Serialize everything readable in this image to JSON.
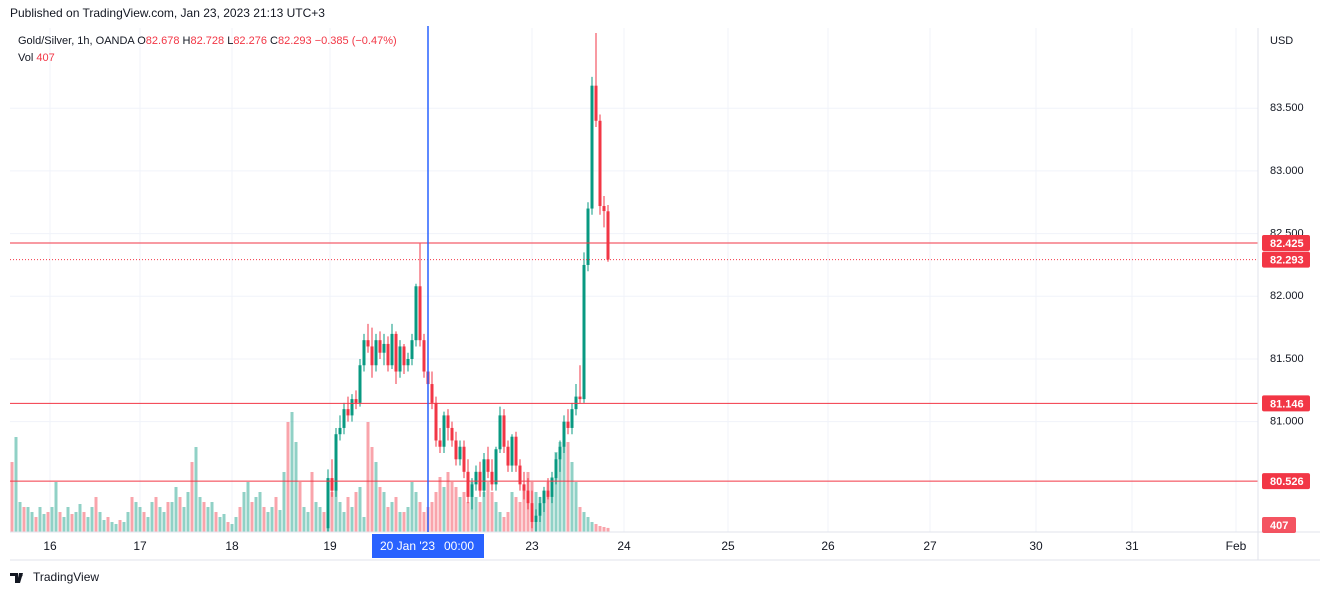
{
  "header": "Published on TradingView.com, Jan 23, 2023 21:13 UTC+3",
  "footer": "TradingView",
  "chart_data": {
    "type": "candlestick",
    "symbol": "Gold/Silver, 1h, OANDA",
    "legend": {
      "o_label": "O",
      "open": 82.678,
      "h_label": "H",
      "high": 82.728,
      "l_label": "L",
      "low": 82.276,
      "c_label": "C",
      "close": 82.293,
      "change": "−0.385 (−0.47%)",
      "vol_label": "Vol",
      "volume": 407
    },
    "currency": "USD",
    "up_color": "#089981",
    "down_color": "#f23645",
    "x": [
      79,
      80,
      81,
      82,
      83,
      84,
      85,
      86,
      87,
      88,
      89,
      90,
      91,
      92,
      93,
      94,
      95,
      96,
      97,
      98,
      99,
      100,
      101,
      102,
      103,
      104,
      105,
      106,
      107,
      108,
      109,
      110,
      111,
      112,
      113,
      114,
      115,
      116,
      117,
      118,
      119,
      120,
      121,
      122,
      123,
      124,
      125,
      126,
      127,
      128,
      129,
      130,
      131,
      132,
      133,
      134,
      135,
      136,
      137,
      138,
      139,
      140,
      141,
      142,
      143,
      144,
      145,
      146,
      147,
      148,
      149
    ],
    "open": [
      80.15,
      80.55,
      80.45,
      80.9,
      80.95,
      81.1,
      81.05,
      81.18,
      81.15,
      81.45,
      81.65,
      81.6,
      81.45,
      81.65,
      81.55,
      81.62,
      81.45,
      81.7,
      81.4,
      81.6,
      81.45,
      81.5,
      81.65,
      82.08,
      81.65,
      81.4,
      81.3,
      81.15,
      80.85,
      80.8,
      81.05,
      80.95,
      80.85,
      80.7,
      80.8,
      80.6,
      80.4,
      80.5,
      80.6,
      80.45,
      80.7,
      80.6,
      80.5,
      80.78,
      81.05,
      80.8,
      80.65,
      80.88,
      80.65,
      80.5,
      80.45,
      80.35,
      80.2,
      80.25,
      80.35,
      80.45,
      80.4,
      80.55,
      80.7,
      80.8,
      81.0,
      80.95,
      81.1,
      81.2,
      81.18,
      82.25,
      82.7,
      83.68,
      83.4,
      82.72,
      82.678
    ],
    "high": [
      80.62,
      80.7,
      80.95,
      81.05,
      81.15,
      81.2,
      81.22,
      81.25,
      81.5,
      81.7,
      81.78,
      81.75,
      81.7,
      81.72,
      81.7,
      81.68,
      81.78,
      81.72,
      81.65,
      81.62,
      81.55,
      81.7,
      82.1,
      82.42,
      81.7,
      81.5,
      81.4,
      81.2,
      80.95,
      81.08,
      81.1,
      81.0,
      80.92,
      80.85,
      80.85,
      80.7,
      80.55,
      80.65,
      80.68,
      80.75,
      80.8,
      80.7,
      80.8,
      81.12,
      81.1,
      80.85,
      80.9,
      80.92,
      80.7,
      80.6,
      80.55,
      80.45,
      80.3,
      80.4,
      80.48,
      80.55,
      80.6,
      80.75,
      80.85,
      81.05,
      81.1,
      81.15,
      81.3,
      81.45,
      82.35,
      82.75,
      83.75,
      84.1,
      83.45,
      82.8,
      82.728
    ],
    "low": [
      80.1,
      80.4,
      80.4,
      80.85,
      80.9,
      81.0,
      81.0,
      81.1,
      81.12,
      81.4,
      81.55,
      81.35,
      81.4,
      81.5,
      81.45,
      81.4,
      81.42,
      81.3,
      81.35,
      81.38,
      81.4,
      81.45,
      81.6,
      81.6,
      81.35,
      81.2,
      81.1,
      80.8,
      80.75,
      80.75,
      80.85,
      80.8,
      80.65,
      80.65,
      80.55,
      80.35,
      80.3,
      80.45,
      80.4,
      80.4,
      80.55,
      80.45,
      80.45,
      80.75,
      80.75,
      80.6,
      80.6,
      80.6,
      80.45,
      80.38,
      80.3,
      80.15,
      80.12,
      80.2,
      80.28,
      80.38,
      80.35,
      80.5,
      80.6,
      80.75,
      80.9,
      80.9,
      81.05,
      81.15,
      81.15,
      82.2,
      82.65,
      83.35,
      82.65,
      82.55,
      82.276
    ],
    "close": [
      80.55,
      80.45,
      80.9,
      80.95,
      81.1,
      81.05,
      81.18,
      81.15,
      81.45,
      81.65,
      81.6,
      81.45,
      81.65,
      81.55,
      81.62,
      81.45,
      81.7,
      81.4,
      81.6,
      81.45,
      81.5,
      81.65,
      82.08,
      81.65,
      81.4,
      81.3,
      81.15,
      80.85,
      80.8,
      81.05,
      80.95,
      80.85,
      80.7,
      80.8,
      80.6,
      80.4,
      80.5,
      80.6,
      80.45,
      80.7,
      80.6,
      80.5,
      80.78,
      81.05,
      80.8,
      80.65,
      80.88,
      80.65,
      80.5,
      80.45,
      80.35,
      80.2,
      80.25,
      80.35,
      80.45,
      80.4,
      80.55,
      80.7,
      80.8,
      81.0,
      80.95,
      81.1,
      81.2,
      81.18,
      82.25,
      82.7,
      83.68,
      83.4,
      82.72,
      82.68,
      82.293
    ],
    "volume": {
      "x": [
        0,
        1,
        2,
        3,
        4,
        5,
        6,
        7,
        8,
        9,
        10,
        11,
        12,
        13,
        14,
        15,
        16,
        17,
        18,
        19,
        20,
        21,
        22,
        23,
        24,
        25,
        26,
        27,
        28,
        29,
        30,
        31,
        32,
        33,
        34,
        35,
        36,
        37,
        38,
        39,
        40,
        41,
        42,
        43,
        44,
        45,
        46,
        47,
        48,
        49,
        50,
        51,
        52,
        53,
        54,
        55,
        56,
        57,
        58,
        59,
        60,
        61,
        62,
        63,
        64,
        65,
        66,
        67,
        68,
        69,
        70,
        71,
        72,
        73,
        74,
        75,
        76,
        77,
        78,
        79,
        80,
        81,
        82,
        83,
        84,
        85,
        86,
        87,
        88,
        89,
        90,
        91,
        92,
        93,
        94,
        95,
        96,
        97,
        98,
        99,
        100,
        101,
        102,
        103,
        104,
        105,
        106,
        107,
        108,
        109,
        110,
        111,
        112,
        113,
        114,
        115,
        116,
        117,
        118,
        119,
        120,
        121,
        122,
        123,
        124,
        125,
        126,
        127,
        128,
        129,
        130,
        131,
        132,
        133,
        134,
        135,
        136,
        137,
        138,
        139,
        140,
        141,
        142,
        143,
        144,
        145,
        146,
        147,
        148,
        149
      ],
      "values": [
        7000,
        9500,
        3000,
        2500,
        2500,
        2000,
        1500,
        2500,
        1800,
        2000,
        2500,
        5000,
        2000,
        1500,
        2500,
        1800,
        2000,
        2800,
        2000,
        1500,
        2500,
        3500,
        2000,
        1200,
        1500,
        1000,
        800,
        1200,
        1000,
        2000,
        3500,
        3000,
        2500,
        2000,
        1500,
        3000,
        3500,
        2500,
        2000,
        3000,
        3000,
        4500,
        3500,
        2500,
        4000,
        7000,
        8500,
        3500,
        3000,
        2500,
        3000,
        2000,
        1500,
        1800,
        1000,
        800,
        1500,
        2500,
        4000,
        5000,
        3000,
        3500,
        4000,
        2500,
        2000,
        2500,
        3500,
        2200,
        6000,
        11000,
        12000,
        9000,
        5000,
        2500,
        2000,
        6000,
        3000,
        2500,
        2000,
        4500,
        4000,
        5000,
        3000,
        2000,
        3500,
        2500,
        4000,
        4500,
        1500,
        11000,
        8500,
        7000,
        4500,
        4000,
        2500,
        3000,
        3500,
        2000,
        2000,
        2500,
        5000,
        4000,
        3000,
        2000,
        2500,
        3000,
        4000,
        5500,
        4500,
        6000,
        5000,
        4500,
        3500,
        4000,
        3000,
        5000,
        3500,
        3000,
        4000,
        5000,
        4000,
        3000,
        2000,
        1500,
        2000,
        4000,
        3500,
        3000,
        4500,
        6000,
        5000,
        4000,
        3500,
        3000,
        5000,
        5500,
        8000,
        9000,
        11000,
        9000,
        7000,
        5000,
        2500,
        2000,
        1500,
        1000,
        800,
        600,
        500,
        407
      ],
      "ylim": [
        0,
        50400
      ]
    },
    "xlim": [
      -0.5,
      311.5
    ],
    "ylim": [
      80.12,
      84.14
    ],
    "yticks": [
      {
        "value": 81,
        "label": "81.000"
      },
      {
        "value": 81.5,
        "label": "81.500"
      },
      {
        "value": 82,
        "label": "82.000"
      },
      {
        "value": 82.5,
        "label": "82.500"
      },
      {
        "value": 83,
        "label": "83.000"
      },
      {
        "value": 83.5,
        "label": "83.500"
      }
    ],
    "xticks": [
      {
        "value": 9.5,
        "label": "16"
      },
      {
        "value": 32,
        "label": "17"
      },
      {
        "value": 55,
        "label": "18"
      },
      {
        "value": 79.5,
        "label": "19"
      },
      {
        "value": 130,
        "label": "23"
      },
      {
        "value": 153,
        "label": "24"
      },
      {
        "value": 179,
        "label": "25"
      },
      {
        "value": 204,
        "label": "26"
      },
      {
        "value": 229.5,
        "label": "27"
      },
      {
        "value": 256,
        "label": "30"
      },
      {
        "value": 280,
        "label": "31"
      },
      {
        "value": 306,
        "label": "Feb"
      }
    ],
    "hlines": [
      82.425,
      81.146,
      80.526
    ],
    "hline_color": "#f23645",
    "crosshair": {
      "x": 104,
      "date": "20 Jan '23",
      "time": "00:00",
      "color": "#2962ff"
    },
    "grid": true
  }
}
